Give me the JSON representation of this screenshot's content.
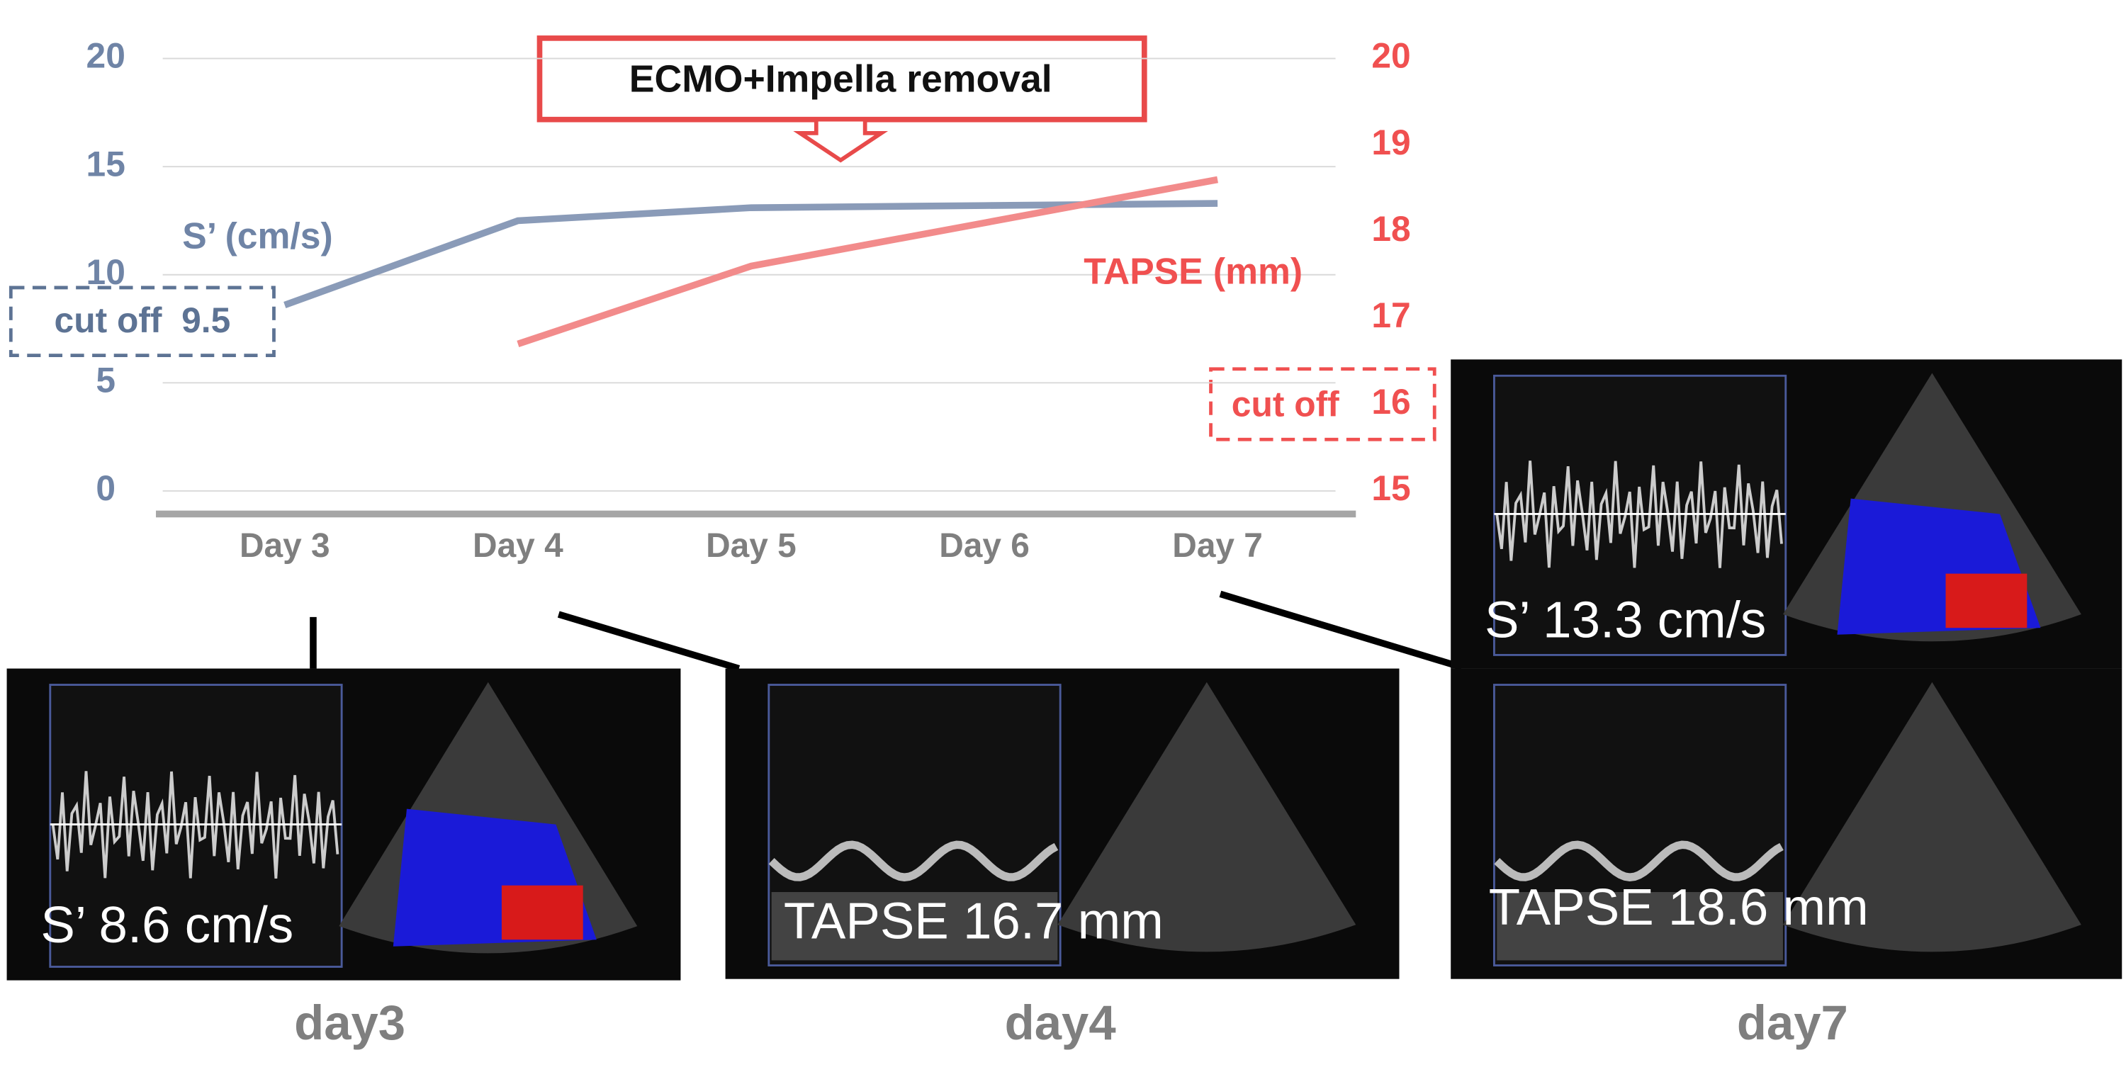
{
  "chart_data": {
    "type": "line",
    "categories": [
      "Day 3",
      "Day 4",
      "Day 5",
      "Day 6",
      "Day 7"
    ],
    "series": [
      {
        "name": "S’ (cm/s)",
        "color": "#8a9bb8",
        "values": [
          8.6,
          12.5,
          13.1,
          13.2,
          13.3
        ]
      },
      {
        "name": "TAPSE (mm)",
        "color": "#f28b8b",
        "axis": "y2",
        "values": [
          null,
          16.7,
          17.6,
          18.1,
          18.6
        ]
      }
    ],
    "ylim": [
      0,
      20
    ],
    "yticks": [
      0,
      5,
      10,
      15,
      20
    ],
    "y2lim": [
      15,
      20
    ],
    "y2ticks": [
      15,
      16,
      17,
      18,
      19,
      20
    ],
    "grid": true,
    "annotations": [
      "ECMO+Impella removal",
      "cut off  9.5",
      "cut off"
    ],
    "panels": [
      {
        "overlays": [
          "S’ 8.6 cm/s"
        ],
        "caption": "day3"
      },
      {
        "overlays": [
          "TAPSE 16.7 mm"
        ],
        "caption": "day4"
      },
      {
        "overlays": [
          "S’ 13.3 cm/s",
          "TAPSE 18.6 mm"
        ],
        "caption": "day7"
      }
    ]
  }
}
